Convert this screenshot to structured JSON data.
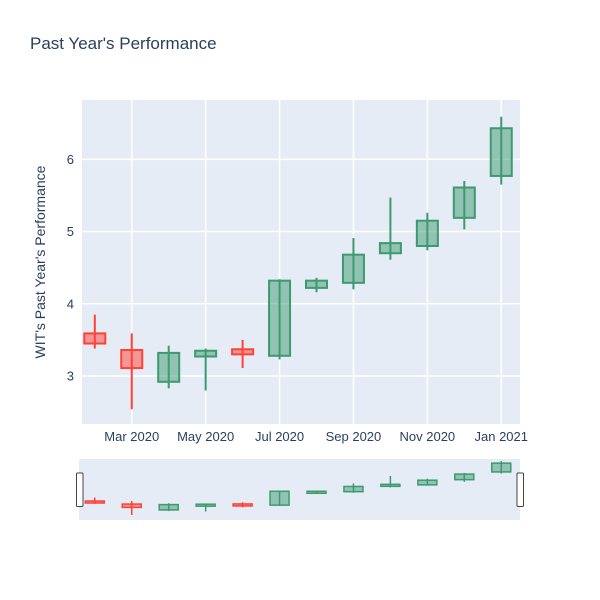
{
  "title": "Past Year's Performance",
  "chart_data": {
    "type": "candlestick",
    "title": "Past Year's Performance",
    "xlabel": "",
    "ylabel": "WIT's Past Year's Performance",
    "ylim": [
      2.33,
      6.82
    ],
    "grid": true,
    "rangeslider": true,
    "yticks": [
      {
        "value": 3,
        "label": "3"
      },
      {
        "value": 4,
        "label": "4"
      },
      {
        "value": 5,
        "label": "5"
      },
      {
        "value": 6,
        "label": "6"
      }
    ],
    "xticks": [
      {
        "index": 1,
        "label": "Mar 2020"
      },
      {
        "index": 3,
        "label": "May 2020"
      },
      {
        "index": 5,
        "label": "Jul 2020"
      },
      {
        "index": 7,
        "label": "Sep 2020"
      },
      {
        "index": 9,
        "label": "Nov 2020"
      },
      {
        "index": 11,
        "label": "Jan 2021"
      }
    ],
    "candles": [
      {
        "date": "Feb 2020",
        "open": 3.59,
        "high": 3.85,
        "low": 3.38,
        "close": 3.45
      },
      {
        "date": "Mar 2020",
        "open": 3.36,
        "high": 3.59,
        "low": 2.54,
        "close": 3.11
      },
      {
        "date": "Apr 2020",
        "open": 2.92,
        "high": 3.42,
        "low": 2.83,
        "close": 3.32
      },
      {
        "date": "May 2020",
        "open": 3.27,
        "high": 3.38,
        "low": 2.8,
        "close": 3.35
      },
      {
        "date": "Jun 2020",
        "open": 3.37,
        "high": 3.5,
        "low": 3.11,
        "close": 3.3
      },
      {
        "date": "Jul 2020",
        "open": 3.28,
        "high": 4.34,
        "low": 3.23,
        "close": 4.32
      },
      {
        "date": "Aug 2020",
        "open": 4.22,
        "high": 4.36,
        "low": 4.16,
        "close": 4.32
      },
      {
        "date": "Sep 2020",
        "open": 4.29,
        "high": 4.91,
        "low": 4.2,
        "close": 4.68
      },
      {
        "date": "Oct 2020",
        "open": 4.7,
        "high": 5.47,
        "low": 4.61,
        "close": 4.84
      },
      {
        "date": "Nov 2020",
        "open": 4.8,
        "high": 5.26,
        "low": 4.74,
        "close": 5.15
      },
      {
        "date": "Dec 2020",
        "open": 5.19,
        "high": 5.7,
        "low": 5.03,
        "close": 5.61
      },
      {
        "date": "Jan 2021",
        "open": 5.77,
        "high": 6.59,
        "low": 5.65,
        "close": 6.43
      }
    ],
    "colors": {
      "increasing": "#3d9970",
      "increasing_fill": "rgba(61,153,112,0.5)",
      "decreasing": "#ff4136",
      "decreasing_fill": "rgba(255,65,54,0.5)",
      "plot_bg": "#e5ecf6",
      "grid": "#ffffff",
      "text": "#2a3f5f",
      "rangeslider_handle_fill": "#ffffff",
      "rangeslider_handle_border": "#444444"
    }
  }
}
